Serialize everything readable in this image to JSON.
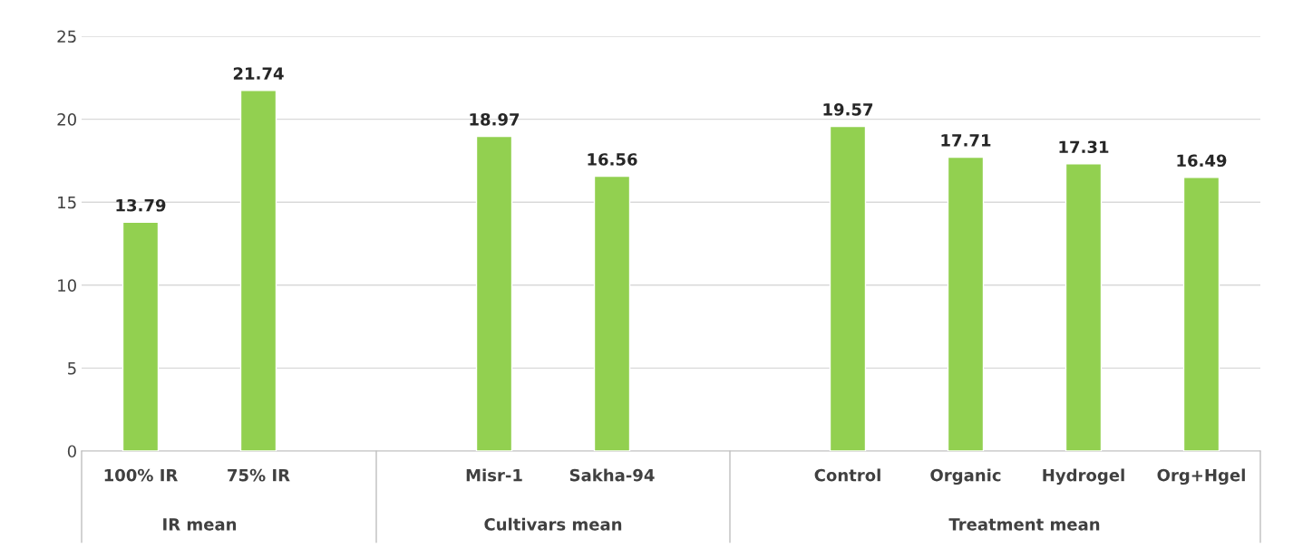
{
  "chart_data": {
    "type": "bar",
    "categories": [
      "100% IR",
      "75% IR",
      null,
      "Misr-1",
      "Sakha-94",
      null,
      "Control",
      "Organic",
      "Hydrogel",
      "Org+Hgel"
    ],
    "values": [
      13.79,
      21.74,
      null,
      18.97,
      16.56,
      null,
      19.57,
      17.71,
      17.31,
      16.49
    ],
    "color": "#92d050",
    "ylim": [
      0,
      25
    ],
    "yticks": [
      0,
      5,
      10,
      15,
      20,
      25
    ],
    "grid": "y",
    "data_labels": true,
    "annotations": [
      "IR mean",
      "Cultivars mean",
      "Treatment mean"
    ]
  }
}
